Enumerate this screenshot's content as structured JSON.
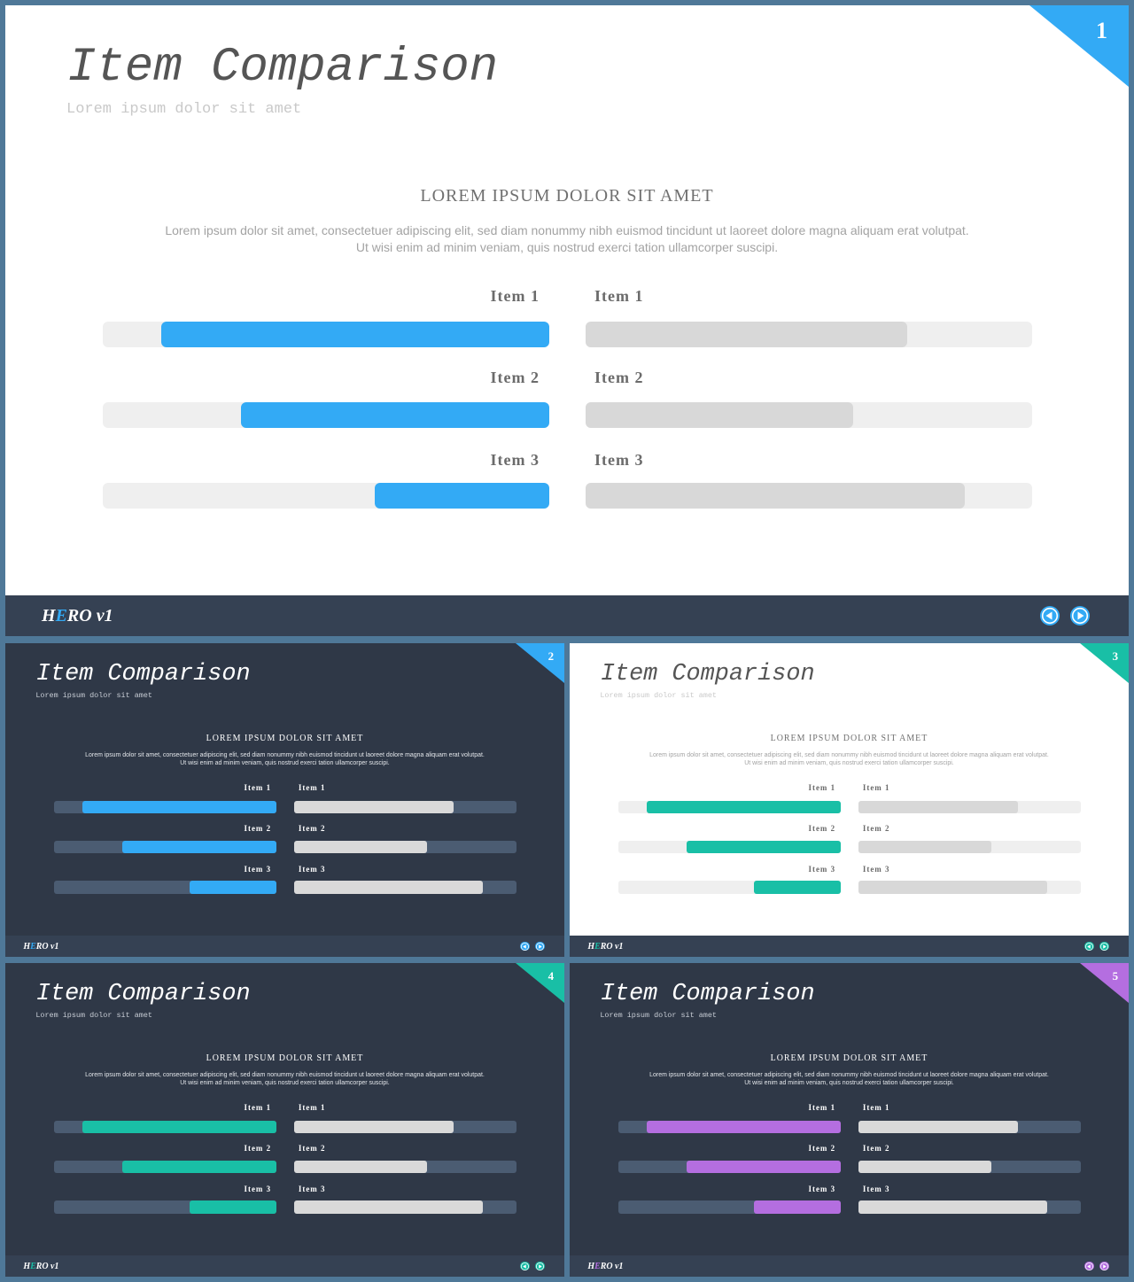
{
  "slides": [
    {
      "number": "1",
      "theme": "light",
      "accent": "#33aaf5",
      "title": "Item Comparison",
      "subtitle": "Lorem ipsum dolor sit amet",
      "heading": "LOREM IPSUM DOLOR SIT AMET",
      "body": "Lorem ipsum dolor sit amet, consectetuer adipiscing elit, sed diam nonummy  nibh euismod tincidunt ut laoreet dolore magna aliquam erat volutpat. Ut wisi enim ad minim veniam, quis nostrud exerci tation ullamcorper suscipi.",
      "logo": {
        "h": "H",
        "e": "E",
        "rest": "RO v1"
      },
      "items": [
        {
          "left_label": "Item 1",
          "right_label": "Item 1",
          "left_value": 0.87,
          "right_value": 0.72
        },
        {
          "left_label": "Item 2",
          "right_label": "Item 2",
          "left_value": 0.69,
          "right_value": 0.6
        },
        {
          "left_label": "Item 3",
          "right_label": "Item 3",
          "left_value": 0.39,
          "right_value": 0.85
        }
      ]
    },
    {
      "number": "2",
      "theme": "dark",
      "accent": "#33aaf5",
      "title": "Item Comparison",
      "subtitle": "Lorem ipsum dolor sit amet",
      "heading": "LOREM IPSUM DOLOR SIT AMET",
      "body": "Lorem ipsum dolor sit amet, consectetuer adipiscing elit, sed diam nonummy  nibh euismod tincidunt ut laoreet dolore magna aliquam erat volutpat. Ut wisi enim ad minim veniam, quis nostrud exerci tation ullamcorper suscipi.",
      "logo": {
        "h": "H",
        "e": "E",
        "rest": "RO v1"
      },
      "items": [
        {
          "left_label": "Item 1",
          "right_label": "Item 1",
          "left_value": 0.87,
          "right_value": 0.72
        },
        {
          "left_label": "Item 2",
          "right_label": "Item 2",
          "left_value": 0.69,
          "right_value": 0.6
        },
        {
          "left_label": "Item 3",
          "right_label": "Item 3",
          "left_value": 0.39,
          "right_value": 0.85
        }
      ]
    },
    {
      "number": "3",
      "theme": "light",
      "accent": "#19bfa6",
      "title": "Item Comparison",
      "subtitle": "Lorem ipsum dolor sit amet",
      "heading": "LOREM IPSUM DOLOR SIT AMET",
      "body": "Lorem ipsum dolor sit amet, consectetuer adipiscing elit, sed diam nonummy  nibh euismod tincidunt ut laoreet dolore magna aliquam erat volutpat. Ut wisi enim ad minim veniam, quis nostrud exerci tation ullamcorper suscipi.",
      "logo": {
        "h": "H",
        "e": "E",
        "rest": "RO v1"
      },
      "items": [
        {
          "left_label": "Item 1",
          "right_label": "Item 1",
          "left_value": 0.87,
          "right_value": 0.72
        },
        {
          "left_label": "Item 2",
          "right_label": "Item 2",
          "left_value": 0.69,
          "right_value": 0.6
        },
        {
          "left_label": "Item 3",
          "right_label": "Item 3",
          "left_value": 0.39,
          "right_value": 0.85
        }
      ]
    },
    {
      "number": "4",
      "theme": "dark",
      "accent": "#19bfa6",
      "title": "Item Comparison",
      "subtitle": "Lorem ipsum dolor sit amet",
      "heading": "LOREM IPSUM DOLOR SIT AMET",
      "body": "Lorem ipsum dolor sit amet, consectetuer adipiscing elit, sed diam nonummy  nibh euismod tincidunt ut laoreet dolore magna aliquam erat volutpat. Ut wisi enim ad minim veniam, quis nostrud exerci tation ullamcorper suscipi.",
      "logo": {
        "h": "H",
        "e": "E",
        "rest": "RO v1"
      },
      "items": [
        {
          "left_label": "Item 1",
          "right_label": "Item 1",
          "left_value": 0.87,
          "right_value": 0.72
        },
        {
          "left_label": "Item 2",
          "right_label": "Item 2",
          "left_value": 0.69,
          "right_value": 0.6
        },
        {
          "left_label": "Item 3",
          "right_label": "Item 3",
          "left_value": 0.39,
          "right_value": 0.85
        }
      ]
    },
    {
      "number": "5",
      "theme": "dark",
      "accent": "#b46ee0",
      "title": "Item Comparison",
      "subtitle": "Lorem ipsum dolor sit amet",
      "heading": "LOREM IPSUM DOLOR SIT AMET",
      "body": "Lorem ipsum dolor sit amet, consectetuer adipiscing elit, sed diam nonummy  nibh euismod tincidunt ut laoreet dolore magna aliquam erat volutpat. Ut wisi enim ad minim veniam, quis nostrud exerci tation ullamcorper suscipi.",
      "logo": {
        "h": "H",
        "e": "E",
        "rest": "RO v1"
      },
      "items": [
        {
          "left_label": "Item 1",
          "right_label": "Item 1",
          "left_value": 0.87,
          "right_value": 0.72
        },
        {
          "left_label": "Item 2",
          "right_label": "Item 2",
          "left_value": 0.69,
          "right_value": 0.6
        },
        {
          "left_label": "Item 3",
          "right_label": "Item 3",
          "left_value": 0.39,
          "right_value": 0.85
        }
      ]
    }
  ],
  "icons": {
    "prev": "arrow-left-circle-icon",
    "next": "arrow-right-circle-icon"
  }
}
